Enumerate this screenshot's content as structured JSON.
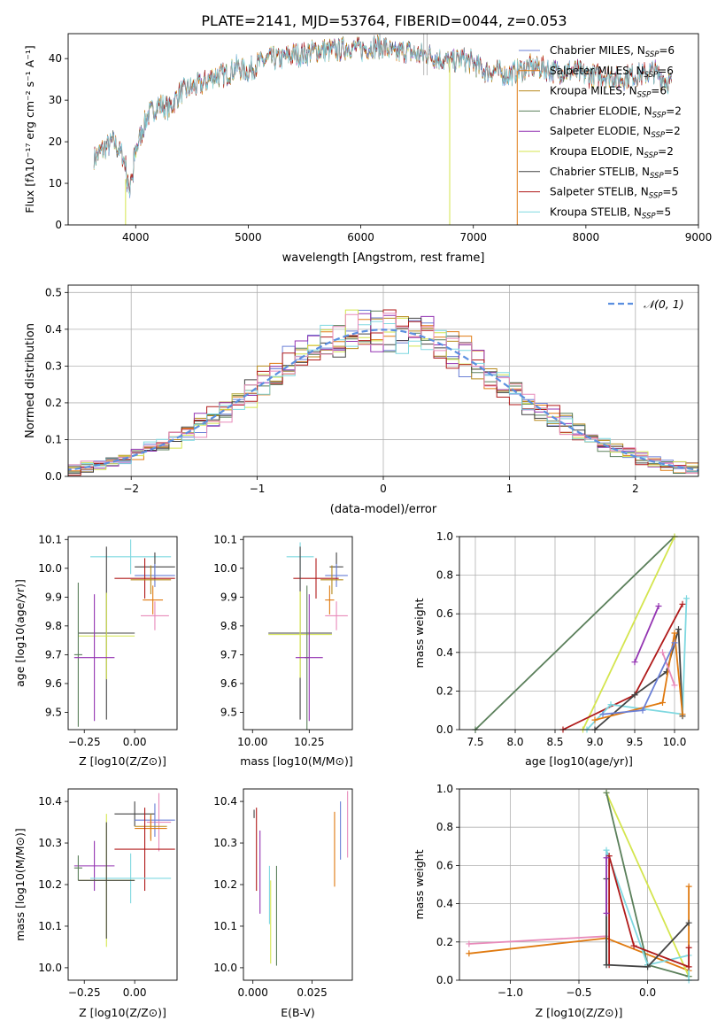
{
  "figure": {
    "title": "PLATE=2141, MJD=53764, FIBERID=0044, z=0.053"
  },
  "palette": {
    "Chabrier MILES": "#6a7fd6",
    "Salpeter MILES": "#e07a10",
    "Kroupa MILES": "#b78a1d",
    "Chabrier ELODIE": "#5a7f5a",
    "Salpeter ELODIE": "#9434b2",
    "Kroupa ELODIE": "#d4e54e",
    "Chabrier STELIB": "#444444",
    "Salpeter STELIB": "#b01a1a",
    "Kroupa STELIB": "#7fd8e0",
    "pink": "#e88aba",
    "gaussian": "#5b8fe0"
  },
  "chart_data": [
    {
      "id": "spectrum",
      "type": "line",
      "title": "PLATE=2141, MJD=53764, FIBERID=0044, z=0.053",
      "xlabel": "wavelength [Angstrom, rest frame]",
      "ylabel": "Flux [fλ10⁻¹⁷ erg cm⁻² s⁻¹ A⁻¹]",
      "xlim": [
        3400,
        9000
      ],
      "ylim": [
        0,
        46
      ],
      "xticks": [
        4000,
        5000,
        6000,
        7000,
        8000,
        9000
      ],
      "yticks": [
        0,
        10,
        20,
        30,
        40
      ],
      "legend_position": "top-right",
      "continuum_x": [
        3630,
        3700,
        3800,
        3880,
        3950,
        4000,
        4100,
        4200,
        4300,
        4400,
        4500,
        4600,
        4700,
        4800,
        4900,
        5000,
        5100,
        5200,
        5300,
        5400,
        5500,
        5600,
        5700,
        5800,
        5900,
        6000,
        6100,
        6200,
        6300,
        6400,
        6500,
        6600,
        6700,
        6800,
        6900,
        7000,
        7100,
        7200,
        7300,
        7400,
        7500,
        7600,
        7700,
        7800,
        7900,
        8000,
        8100,
        8200,
        8300,
        8400,
        8500,
        8600,
        8700,
        8760
      ],
      "continuum_y": [
        16,
        18,
        20,
        17,
        11,
        18,
        26,
        29,
        28,
        32,
        33,
        34,
        36,
        36,
        38,
        37,
        39,
        40,
        40,
        41,
        41,
        42,
        42,
        42,
        43,
        42,
        43,
        43,
        41,
        42,
        41,
        41,
        40,
        39,
        40,
        39,
        37,
        37,
        36,
        37,
        38,
        38,
        37,
        37,
        37,
        36,
        36,
        36,
        35,
        36,
        36,
        37,
        35,
        34
      ],
      "series": [
        {
          "name": "Chabrier MILES, NSSP=6",
          "label_main": "Chabrier MILES, N",
          "label_sub": "SSP",
          "label_tail": "=6"
        },
        {
          "name": "Salpeter MILES, NSSP=6",
          "label_main": "Salpeter MILES, N",
          "label_sub": "SSP",
          "label_tail": "=6"
        },
        {
          "name": "Kroupa MILES, NSSP=6",
          "label_main": "Kroupa MILES, N",
          "label_sub": "SSP",
          "label_tail": "=6"
        },
        {
          "name": "Chabrier ELODIE, NSSP=2",
          "label_main": "Chabrier ELODIE, N",
          "label_sub": "SSP",
          "label_tail": "=2"
        },
        {
          "name": "Salpeter ELODIE, NSSP=2",
          "label_main": "Salpeter ELODIE, N",
          "label_sub": "SSP",
          "label_tail": "=2"
        },
        {
          "name": "Kroupa ELODIE, NSSP=2",
          "label_main": "Kroupa ELODIE, N",
          "label_sub": "SSP",
          "label_tail": "=2"
        },
        {
          "name": "Chabrier STELIB, NSSP=5",
          "label_main": "Chabrier STELIB, N",
          "label_sub": "SSP",
          "label_tail": "=5"
        },
        {
          "name": "Salpeter STELIB, NSSP=5",
          "label_main": "Salpeter STELIB, N",
          "label_sub": "SSP",
          "label_tail": "=5"
        },
        {
          "name": "Kroupa STELIB, NSSP=5",
          "label_main": "Kroupa STELIB, N",
          "label_sub": "SSP",
          "label_tail": "=5"
        }
      ]
    },
    {
      "id": "residuals",
      "type": "histogram",
      "xlabel": "(data-model)/error",
      "ylabel": "Normed distribution",
      "xlim": [
        -2.5,
        2.5
      ],
      "ylim": [
        0,
        0.52
      ],
      "xticks": [
        -2,
        -1,
        0,
        1,
        2
      ],
      "yticks": [
        0.0,
        0.1,
        0.2,
        0.3,
        0.4,
        0.5
      ],
      "grid": true,
      "legend_position": "top-right",
      "legend_label": "𝒩(0, 1)",
      "bin_width": 0.1
    },
    {
      "id": "age_vs_Z",
      "type": "errorbar",
      "xlabel": "Z [log10(Z/Z⊙)]",
      "ylabel": "age  [log10(age/yr)]",
      "xlim": [
        -0.33,
        0.21
      ],
      "ylim": [
        9.44,
        10.11
      ],
      "xticks": [
        -0.25,
        0.0
      ],
      "yticks": [
        9.5,
        9.6,
        9.7,
        9.8,
        9.9,
        10.0,
        10.1
      ],
      "points": [
        {
          "s": "Kroupa STELIB",
          "x": -0.02,
          "xerr": 0.2,
          "y": 10.04,
          "yerr": 0.06
        },
        {
          "s": "Chabrier STELIB",
          "x": 0.1,
          "xerr": 0.1,
          "y": 10.005,
          "yerr": 0.05
        },
        {
          "s": "Chabrier MILES",
          "x": 0.1,
          "xerr": 0.1,
          "y": 9.975,
          "yerr": 0.04
        },
        {
          "s": "Salpeter STELIB",
          "x": 0.05,
          "xerr": 0.15,
          "y": 9.965,
          "yerr": 0.07
        },
        {
          "s": "Kroupa MILES",
          "x": 0.08,
          "xerr": 0.1,
          "y": 9.96,
          "yerr": 0.05
        },
        {
          "s": "Salpeter MILES",
          "x": 0.09,
          "xerr": 0.05,
          "y": 9.89,
          "yerr": 0.05
        },
        {
          "s": "pink",
          "x": 0.1,
          "xerr": 0.07,
          "y": 9.835,
          "yerr": 0.05
        },
        {
          "s": "Chabrier STELIB",
          "x": -0.14,
          "xerr": 0.14,
          "y": 9.775,
          "yerr": 0.3
        },
        {
          "s": "Kroupa ELODIE",
          "x": -0.14,
          "xerr": 0.14,
          "y": 9.765,
          "yerr": 0.15
        },
        {
          "s": "Chabrier ELODIE",
          "x": -0.28,
          "xerr": 0.02,
          "y": 9.7,
          "yerr": 0.25
        },
        {
          "s": "Salpeter ELODIE",
          "x": -0.2,
          "xerr": 0.1,
          "y": 9.69,
          "yerr": 0.22
        }
      ]
    },
    {
      "id": "age_vs_mass",
      "type": "errorbar",
      "xlabel": "mass [log10(M/M⊙)]",
      "ylabel": "",
      "xlim": [
        9.96,
        10.44
      ],
      "ylim": [
        9.44,
        10.11
      ],
      "xticks": [
        10.0,
        10.25
      ],
      "yticks": [
        9.5,
        9.6,
        9.7,
        9.8,
        9.9,
        10.0,
        10.1
      ],
      "points": [
        {
          "s": "Kroupa STELIB",
          "x": 10.21,
          "xerr": 0.06,
          "y": 10.04,
          "yerr": 0.05
        },
        {
          "s": "Chabrier STELIB",
          "x": 10.37,
          "xerr": 0.03,
          "y": 10.005,
          "yerr": 0.05
        },
        {
          "s": "Chabrier MILES",
          "x": 10.37,
          "xerr": 0.05,
          "y": 9.975,
          "yerr": 0.04
        },
        {
          "s": "Salpeter STELIB",
          "x": 10.28,
          "xerr": 0.1,
          "y": 9.965,
          "yerr": 0.07
        },
        {
          "s": "Kroupa MILES",
          "x": 10.35,
          "xerr": 0.05,
          "y": 9.96,
          "yerr": 0.05
        },
        {
          "s": "Salpeter MILES",
          "x": 10.34,
          "xerr": 0.02,
          "y": 9.89,
          "yerr": 0.05
        },
        {
          "s": "pink",
          "x": 10.37,
          "xerr": 0.05,
          "y": 9.835,
          "yerr": 0.05
        },
        {
          "s": "Chabrier STELIB",
          "x": 10.21,
          "xerr": 0.14,
          "y": 9.775,
          "yerr": 0.3
        },
        {
          "s": "Kroupa ELODIE",
          "x": 10.21,
          "xerr": 0.14,
          "y": 9.77,
          "yerr": 0.15
        },
        {
          "s": "Chabrier ELODIE",
          "x": 10.24,
          "xerr": 0.01,
          "y": 9.69,
          "yerr": 0.25
        },
        {
          "s": "Salpeter ELODIE",
          "x": 10.25,
          "xerr": 0.06,
          "y": 9.69,
          "yerr": 0.22
        }
      ]
    },
    {
      "id": "mass_weight_vs_age",
      "type": "line",
      "xlabel": "age  [log10(age/yr)]",
      "ylabel": "mass weight",
      "xlim": [
        7.3,
        10.3
      ],
      "ylim": [
        0,
        1.0
      ],
      "xticks": [
        7.5,
        8.0,
        8.5,
        9.0,
        9.5,
        10.0
      ],
      "yticks": [
        0.0,
        0.2,
        0.4,
        0.6,
        0.8,
        1.0
      ],
      "grid": true,
      "series": [
        {
          "s": "Chabrier ELODIE",
          "x": [
            7.5,
            10.0
          ],
          "y": [
            0.0,
            1.0
          ]
        },
        {
          "s": "Kroupa ELODIE",
          "x": [
            8.85,
            10.0
          ],
          "y": [
            0.0,
            1.0
          ]
        },
        {
          "s": "Salpeter ELODIE",
          "x": [
            9.5,
            9.8
          ],
          "y": [
            0.35,
            0.64
          ]
        },
        {
          "s": "Salpeter STELIB",
          "x": [
            8.6,
            9.5,
            10.1
          ],
          "y": [
            0.0,
            0.18,
            0.65
          ]
        },
        {
          "s": "Kroupa STELIB",
          "x": [
            8.9,
            9.2,
            10.1,
            10.15
          ],
          "y": [
            0.0,
            0.13,
            0.08,
            0.68
          ]
        },
        {
          "s": "Chabrier STELIB",
          "x": [
            9.0,
            9.5,
            9.9,
            10.05,
            10.1
          ],
          "y": [
            0.0,
            0.18,
            0.3,
            0.52,
            0.07
          ]
        },
        {
          "s": "Salpeter MILES",
          "x": [
            9.0,
            9.85,
            10.0,
            10.1
          ],
          "y": [
            0.05,
            0.14,
            0.5,
            0.08
          ]
        },
        {
          "s": "pink",
          "x": [
            9.85,
            10.0
          ],
          "y": [
            0.4,
            0.23
          ]
        },
        {
          "s": "Chabrier MILES",
          "x": [
            9.1,
            9.6,
            10.0
          ],
          "y": [
            0.08,
            0.1,
            0.45
          ]
        }
      ]
    },
    {
      "id": "mass_vs_Z",
      "type": "errorbar",
      "xlabel": "Z [log10(Z/Z⊙)]",
      "ylabel": "mass [log10(M/M⊙)]",
      "xlim": [
        -0.33,
        0.21
      ],
      "ylim": [
        9.97,
        10.43
      ],
      "xticks": [
        -0.25,
        0.0
      ],
      "yticks": [
        10.0,
        10.1,
        10.2,
        10.3,
        10.4
      ],
      "points": [
        {
          "s": "pink",
          "x": 0.12,
          "xerr": 0.06,
          "y": 10.35,
          "yerr": 0.07
        },
        {
          "s": "Chabrier STELIB",
          "x": 0.0,
          "xerr": 0.1,
          "y": 10.37,
          "yerr": 0.03
        },
        {
          "s": "Chabrier MILES",
          "x": 0.1,
          "xerr": 0.1,
          "y": 10.355,
          "yerr": 0.04
        },
        {
          "s": "Kroupa MILES",
          "x": 0.08,
          "xerr": 0.08,
          "y": 10.34,
          "yerr": 0.03
        },
        {
          "s": "Salpeter MILES",
          "x": 0.08,
          "xerr": 0.08,
          "y": 10.335,
          "yerr": 0.03
        },
        {
          "s": "Salpeter STELIB",
          "x": 0.05,
          "xerr": 0.15,
          "y": 10.285,
          "yerr": 0.1
        },
        {
          "s": "Salpeter ELODIE",
          "x": -0.2,
          "xerr": 0.1,
          "y": 10.245,
          "yerr": 0.06
        },
        {
          "s": "Kroupa STELIB",
          "x": -0.02,
          "xerr": 0.2,
          "y": 10.215,
          "yerr": 0.06
        },
        {
          "s": "Kroupa ELODIE",
          "x": -0.14,
          "xerr": 0.14,
          "y": 10.21,
          "yerr": 0.16
        },
        {
          "s": "Chabrier ELODIE",
          "x": -0.28,
          "xerr": 0.02,
          "y": 10.24,
          "yerr": 0.03
        },
        {
          "s": "Chabrier STELIB",
          "x": -0.14,
          "xerr": 0.14,
          "y": 10.21,
          "yerr": 0.14
        }
      ]
    },
    {
      "id": "mass_vs_ebv",
      "type": "errorbar",
      "xlabel": "E(B-V)",
      "ylabel": "",
      "xlim": [
        -0.004,
        0.042
      ],
      "ylim": [
        9.97,
        10.43
      ],
      "xticks": [
        0.0,
        0.025
      ],
      "yticks": [
        10.0,
        10.1,
        10.2,
        10.3,
        10.4
      ],
      "points": [
        {
          "s": "Chabrier STELIB",
          "x": 0.0005,
          "xerr": 0,
          "y": 10.37,
          "yerr": 0.01
        },
        {
          "s": "Salpeter STELIB",
          "x": 0.0015,
          "xerr": 0,
          "y": 10.285,
          "yerr": 0.1
        },
        {
          "s": "Salpeter ELODIE",
          "x": 0.003,
          "xerr": 0,
          "y": 10.23,
          "yerr": 0.1
        },
        {
          "s": "Kroupa STELIB",
          "x": 0.007,
          "xerr": 0,
          "y": 10.175,
          "yerr": 0.07
        },
        {
          "s": "Kroupa ELODIE",
          "x": 0.0075,
          "xerr": 0,
          "y": 10.11,
          "yerr": 0.1
        },
        {
          "s": "Chabrier ELODIE",
          "x": 0.01,
          "xerr": 0,
          "y": 10.125,
          "yerr": 0.12
        },
        {
          "s": "Salpeter MILES",
          "x": 0.0345,
          "xerr": 0,
          "y": 10.285,
          "yerr": 0.09
        },
        {
          "s": "Chabrier MILES",
          "x": 0.037,
          "xerr": 0,
          "y": 10.33,
          "yerr": 0.07
        },
        {
          "s": "pink",
          "x": 0.04,
          "xerr": 0,
          "y": 10.345,
          "yerr": 0.08
        }
      ]
    },
    {
      "id": "mass_weight_vs_Z",
      "type": "line",
      "xlabel": "Z [log10(Z/Z⊙)]",
      "ylabel": "mass weight",
      "xlim": [
        -1.37,
        0.37
      ],
      "ylim": [
        0,
        1.0
      ],
      "xticks": [
        -1.0,
        -0.5,
        0.0
      ],
      "yticks": [
        0.0,
        0.2,
        0.4,
        0.6,
        0.8,
        1.0
      ],
      "grid": true,
      "series": [
        {
          "s": "pink",
          "x": [
            -1.3,
            -0.3
          ],
          "y": [
            0.19,
            0.23
          ]
        },
        {
          "s": "Salpeter MILES",
          "x": [
            -1.3,
            -0.3,
            0.3,
            0.3
          ],
          "y": [
            0.14,
            0.22,
            0.05,
            0.49
          ]
        },
        {
          "s": "Kroupa ELODIE",
          "x": [
            -0.3,
            0.3
          ],
          "y": [
            0.98,
            0.02
          ]
        },
        {
          "s": "Chabrier ELODIE",
          "x": [
            -0.3,
            0.0,
            0.3
          ],
          "y": [
            0.98,
            0.08,
            0.02
          ]
        },
        {
          "s": "Kroupa STELIB",
          "x": [
            -0.3,
            -0.3,
            0.0,
            0.3,
            0.3
          ],
          "y": [
            0.08,
            0.68,
            0.08,
            0.13,
            0.0
          ]
        },
        {
          "s": "Salpeter STELIB",
          "x": [
            -0.28,
            -0.28,
            -0.1,
            0.3,
            0.3
          ],
          "y": [
            0.08,
            0.65,
            0.18,
            0.07,
            0.17
          ]
        },
        {
          "s": "Chabrier STELIB",
          "x": [
            -0.3,
            -0.3,
            0.0,
            0.3
          ],
          "y": [
            0.53,
            0.08,
            0.07,
            0.3
          ]
        },
        {
          "s": "Salpeter ELODIE",
          "x": [
            -0.3,
            -0.3
          ],
          "y": [
            0.35,
            0.64
          ]
        }
      ]
    }
  ]
}
